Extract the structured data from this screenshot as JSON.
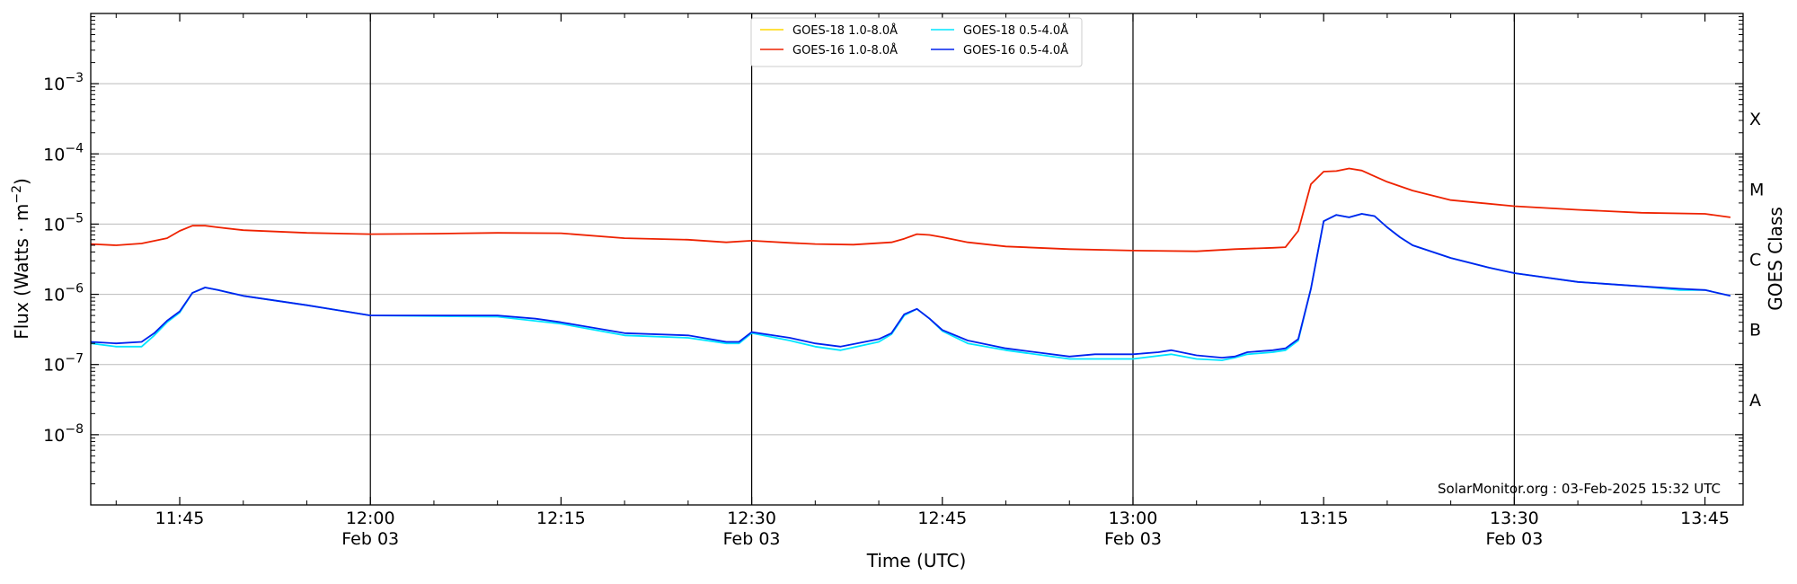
{
  "chart_data": {
    "type": "line",
    "xlabel": "Time (UTC)",
    "ylabel_base": "Flux (Watts · m",
    "ylabel_sup": "−2",
    "ylabel_close": ")",
    "y2label": "GOES Class",
    "log_scale_y": true,
    "xlim": [
      "11:38",
      "13:48"
    ],
    "ylim": [
      1e-09,
      0.01
    ],
    "grid_y": true,
    "legend_placement": "top-center",
    "x_ticks": [
      {
        "time": "11:45",
        "label": "11:45",
        "sub": ""
      },
      {
        "time": "12:00",
        "label": "12:00",
        "sub": "Feb 03"
      },
      {
        "time": "12:15",
        "label": "12:15",
        "sub": ""
      },
      {
        "time": "12:30",
        "label": "12:30",
        "sub": "Feb 03"
      },
      {
        "time": "12:45",
        "label": "12:45",
        "sub": ""
      },
      {
        "time": "13:00",
        "label": "13:00",
        "sub": "Feb 03"
      },
      {
        "time": "13:15",
        "label": "13:15",
        "sub": ""
      },
      {
        "time": "13:30",
        "label": "13:30",
        "sub": "Feb 03"
      },
      {
        "time": "13:45",
        "label": "13:45",
        "sub": ""
      }
    ],
    "vertical_lines": [
      "12:00",
      "12:30",
      "13:00",
      "13:30"
    ],
    "y_ticks": [
      {
        "exp": -8,
        "base": "10",
        "sup": "−8"
      },
      {
        "exp": -7,
        "base": "10",
        "sup": "−7"
      },
      {
        "exp": -6,
        "base": "10",
        "sup": "−6"
      },
      {
        "exp": -5,
        "base": "10",
        "sup": "−5"
      },
      {
        "exp": -4,
        "base": "10",
        "sup": "−4"
      },
      {
        "exp": -3,
        "base": "10",
        "sup": "−3"
      }
    ],
    "goes_classes": [
      {
        "label": "A",
        "exp": -7.5
      },
      {
        "label": "B",
        "exp": -6.5
      },
      {
        "label": "C",
        "exp": -5.5
      },
      {
        "label": "M",
        "exp": -4.5
      },
      {
        "label": "X",
        "exp": -3.5
      }
    ],
    "credit": "SolarMonitor.org : 03-Feb-2025 15:32 UTC",
    "series": [
      {
        "name": "GOES-18 1.0-8.0Å",
        "color": "#ffd700",
        "x": [],
        "y": []
      },
      {
        "name": "GOES-18 0.5-4.0Å",
        "color": "#00e5ff",
        "x": [
          "11:38",
          "11:40",
          "11:42",
          "11:43",
          "11:44",
          "11:45",
          "11:46",
          "11:47",
          "11:48",
          "11:50",
          "11:55",
          "12:00",
          "12:05",
          "12:10",
          "12:15",
          "12:20",
          "12:25",
          "12:28",
          "12:29",
          "12:30",
          "12:33",
          "12:35",
          "12:37",
          "12:40",
          "12:41",
          "12:42",
          "12:43",
          "12:44",
          "12:45",
          "12:47",
          "12:50",
          "12:55",
          "12:57",
          "13:00",
          "13:03",
          "13:05",
          "13:07",
          "13:08",
          "13:09",
          "13:11",
          "13:12",
          "13:13",
          "13:14",
          "13:15",
          "13:16",
          "13:17",
          "13:18",
          "13:19",
          "13:20",
          "13:21",
          "13:22",
          "13:25",
          "13:28",
          "13:30",
          "13:35",
          "13:40",
          "13:43",
          "13:45",
          "13:47"
        ],
        "y": [
          2e-07,
          1.8e-07,
          1.8e-07,
          2.6e-07,
          4e-07,
          5.5e-07,
          1.05e-06,
          1.25e-06,
          1.15e-06,
          9.5e-07,
          7e-07,
          5e-07,
          4.9e-07,
          4.8e-07,
          3.8e-07,
          2.6e-07,
          2.4e-07,
          2e-07,
          2e-07,
          2.8e-07,
          2.2e-07,
          1.8e-07,
          1.6e-07,
          2.1e-07,
          2.7e-07,
          5e-07,
          6.2e-07,
          4.5e-07,
          3e-07,
          2e-07,
          1.6e-07,
          1.2e-07,
          1.2e-07,
          1.2e-07,
          1.4e-07,
          1.2e-07,
          1.15e-07,
          1.25e-07,
          1.4e-07,
          1.5e-07,
          1.6e-07,
          2.2e-07,
          1.2e-06,
          1.1e-05,
          1.35e-05,
          1.25e-05,
          1.4e-05,
          1.3e-05,
          9e-06,
          6.5e-06,
          5e-06,
          3.3e-06,
          2.4e-06,
          2e-06,
          1.5e-06,
          1.3e-06,
          1.15e-06,
          1.15e-06,
          9.5e-07
        ]
      },
      {
        "name": "GOES-16 1.0-8.0Å",
        "color": "#ee2200",
        "x": [
          "11:38",
          "11:40",
          "11:42",
          "11:44",
          "11:45",
          "11:46",
          "11:47",
          "11:48",
          "11:50",
          "11:55",
          "12:00",
          "12:05",
          "12:10",
          "12:15",
          "12:20",
          "12:25",
          "12:28",
          "12:30",
          "12:33",
          "12:35",
          "12:38",
          "12:41",
          "12:42",
          "12:43",
          "12:44",
          "12:45",
          "12:47",
          "12:50",
          "12:55",
          "13:00",
          "13:05",
          "13:08",
          "13:11",
          "13:12",
          "13:13",
          "13:14",
          "13:15",
          "13:16",
          "13:17",
          "13:18",
          "13:19",
          "13:20",
          "13:22",
          "13:25",
          "13:30",
          "13:35",
          "13:40",
          "13:45",
          "13:47"
        ],
        "y": [
          5.2e-06,
          5e-06,
          5.3e-06,
          6.3e-06,
          8e-06,
          9.5e-06,
          9.5e-06,
          9e-06,
          8.2e-06,
          7.5e-06,
          7.2e-06,
          7.3e-06,
          7.5e-06,
          7.4e-06,
          6.3e-06,
          6e-06,
          5.5e-06,
          5.8e-06,
          5.4e-06,
          5.2e-06,
          5.1e-06,
          5.5e-06,
          6.2e-06,
          7.2e-06,
          7e-06,
          6.5e-06,
          5.5e-06,
          4.8e-06,
          4.4e-06,
          4.2e-06,
          4.1e-06,
          4.4e-06,
          4.6e-06,
          4.7e-06,
          8e-06,
          3.7e-05,
          5.6e-05,
          5.7e-05,
          6.2e-05,
          5.8e-05,
          4.8e-05,
          4e-05,
          3e-05,
          2.2e-05,
          1.8e-05,
          1.6e-05,
          1.45e-05,
          1.4e-05,
          1.25e-05
        ]
      },
      {
        "name": "GOES-16 0.5-4.0Å",
        "color": "#0022ee",
        "x": [
          "11:38",
          "11:40",
          "11:42",
          "11:43",
          "11:44",
          "11:45",
          "11:46",
          "11:47",
          "11:48",
          "11:50",
          "11:55",
          "12:00",
          "12:05",
          "12:10",
          "12:13",
          "12:15",
          "12:20",
          "12:25",
          "12:28",
          "12:29",
          "12:30",
          "12:33",
          "12:35",
          "12:37",
          "12:40",
          "12:41",
          "12:42",
          "12:43",
          "12:44",
          "12:45",
          "12:47",
          "12:50",
          "12:55",
          "12:57",
          "13:00",
          "13:02",
          "13:03",
          "13:05",
          "13:07",
          "13:08",
          "13:09",
          "13:11",
          "13:12",
          "13:13",
          "13:14",
          "13:15",
          "13:16",
          "13:17",
          "13:18",
          "13:19",
          "13:20",
          "13:21",
          "13:22",
          "13:25",
          "13:28",
          "13:30",
          "13:35",
          "13:40",
          "13:43",
          "13:45",
          "13:47"
        ],
        "y": [
          2.1e-07,
          2e-07,
          2.1e-07,
          2.8e-07,
          4.2e-07,
          5.7e-07,
          1.05e-06,
          1.25e-06,
          1.15e-06,
          9.5e-07,
          7e-07,
          5e-07,
          5e-07,
          5e-07,
          4.5e-07,
          4e-07,
          2.8e-07,
          2.6e-07,
          2.1e-07,
          2.1e-07,
          2.9e-07,
          2.4e-07,
          2e-07,
          1.8e-07,
          2.3e-07,
          2.8e-07,
          5.2e-07,
          6.2e-07,
          4.5e-07,
          3.1e-07,
          2.2e-07,
          1.7e-07,
          1.3e-07,
          1.4e-07,
          1.4e-07,
          1.5e-07,
          1.6e-07,
          1.35e-07,
          1.25e-07,
          1.3e-07,
          1.5e-07,
          1.6e-07,
          1.7e-07,
          2.3e-07,
          1.2e-06,
          1.1e-05,
          1.35e-05,
          1.25e-05,
          1.4e-05,
          1.3e-05,
          9e-06,
          6.5e-06,
          5e-06,
          3.3e-06,
          2.4e-06,
          2e-06,
          1.5e-06,
          1.3e-06,
          1.2e-06,
          1.15e-06,
          9.5e-07
        ]
      }
    ]
  }
}
